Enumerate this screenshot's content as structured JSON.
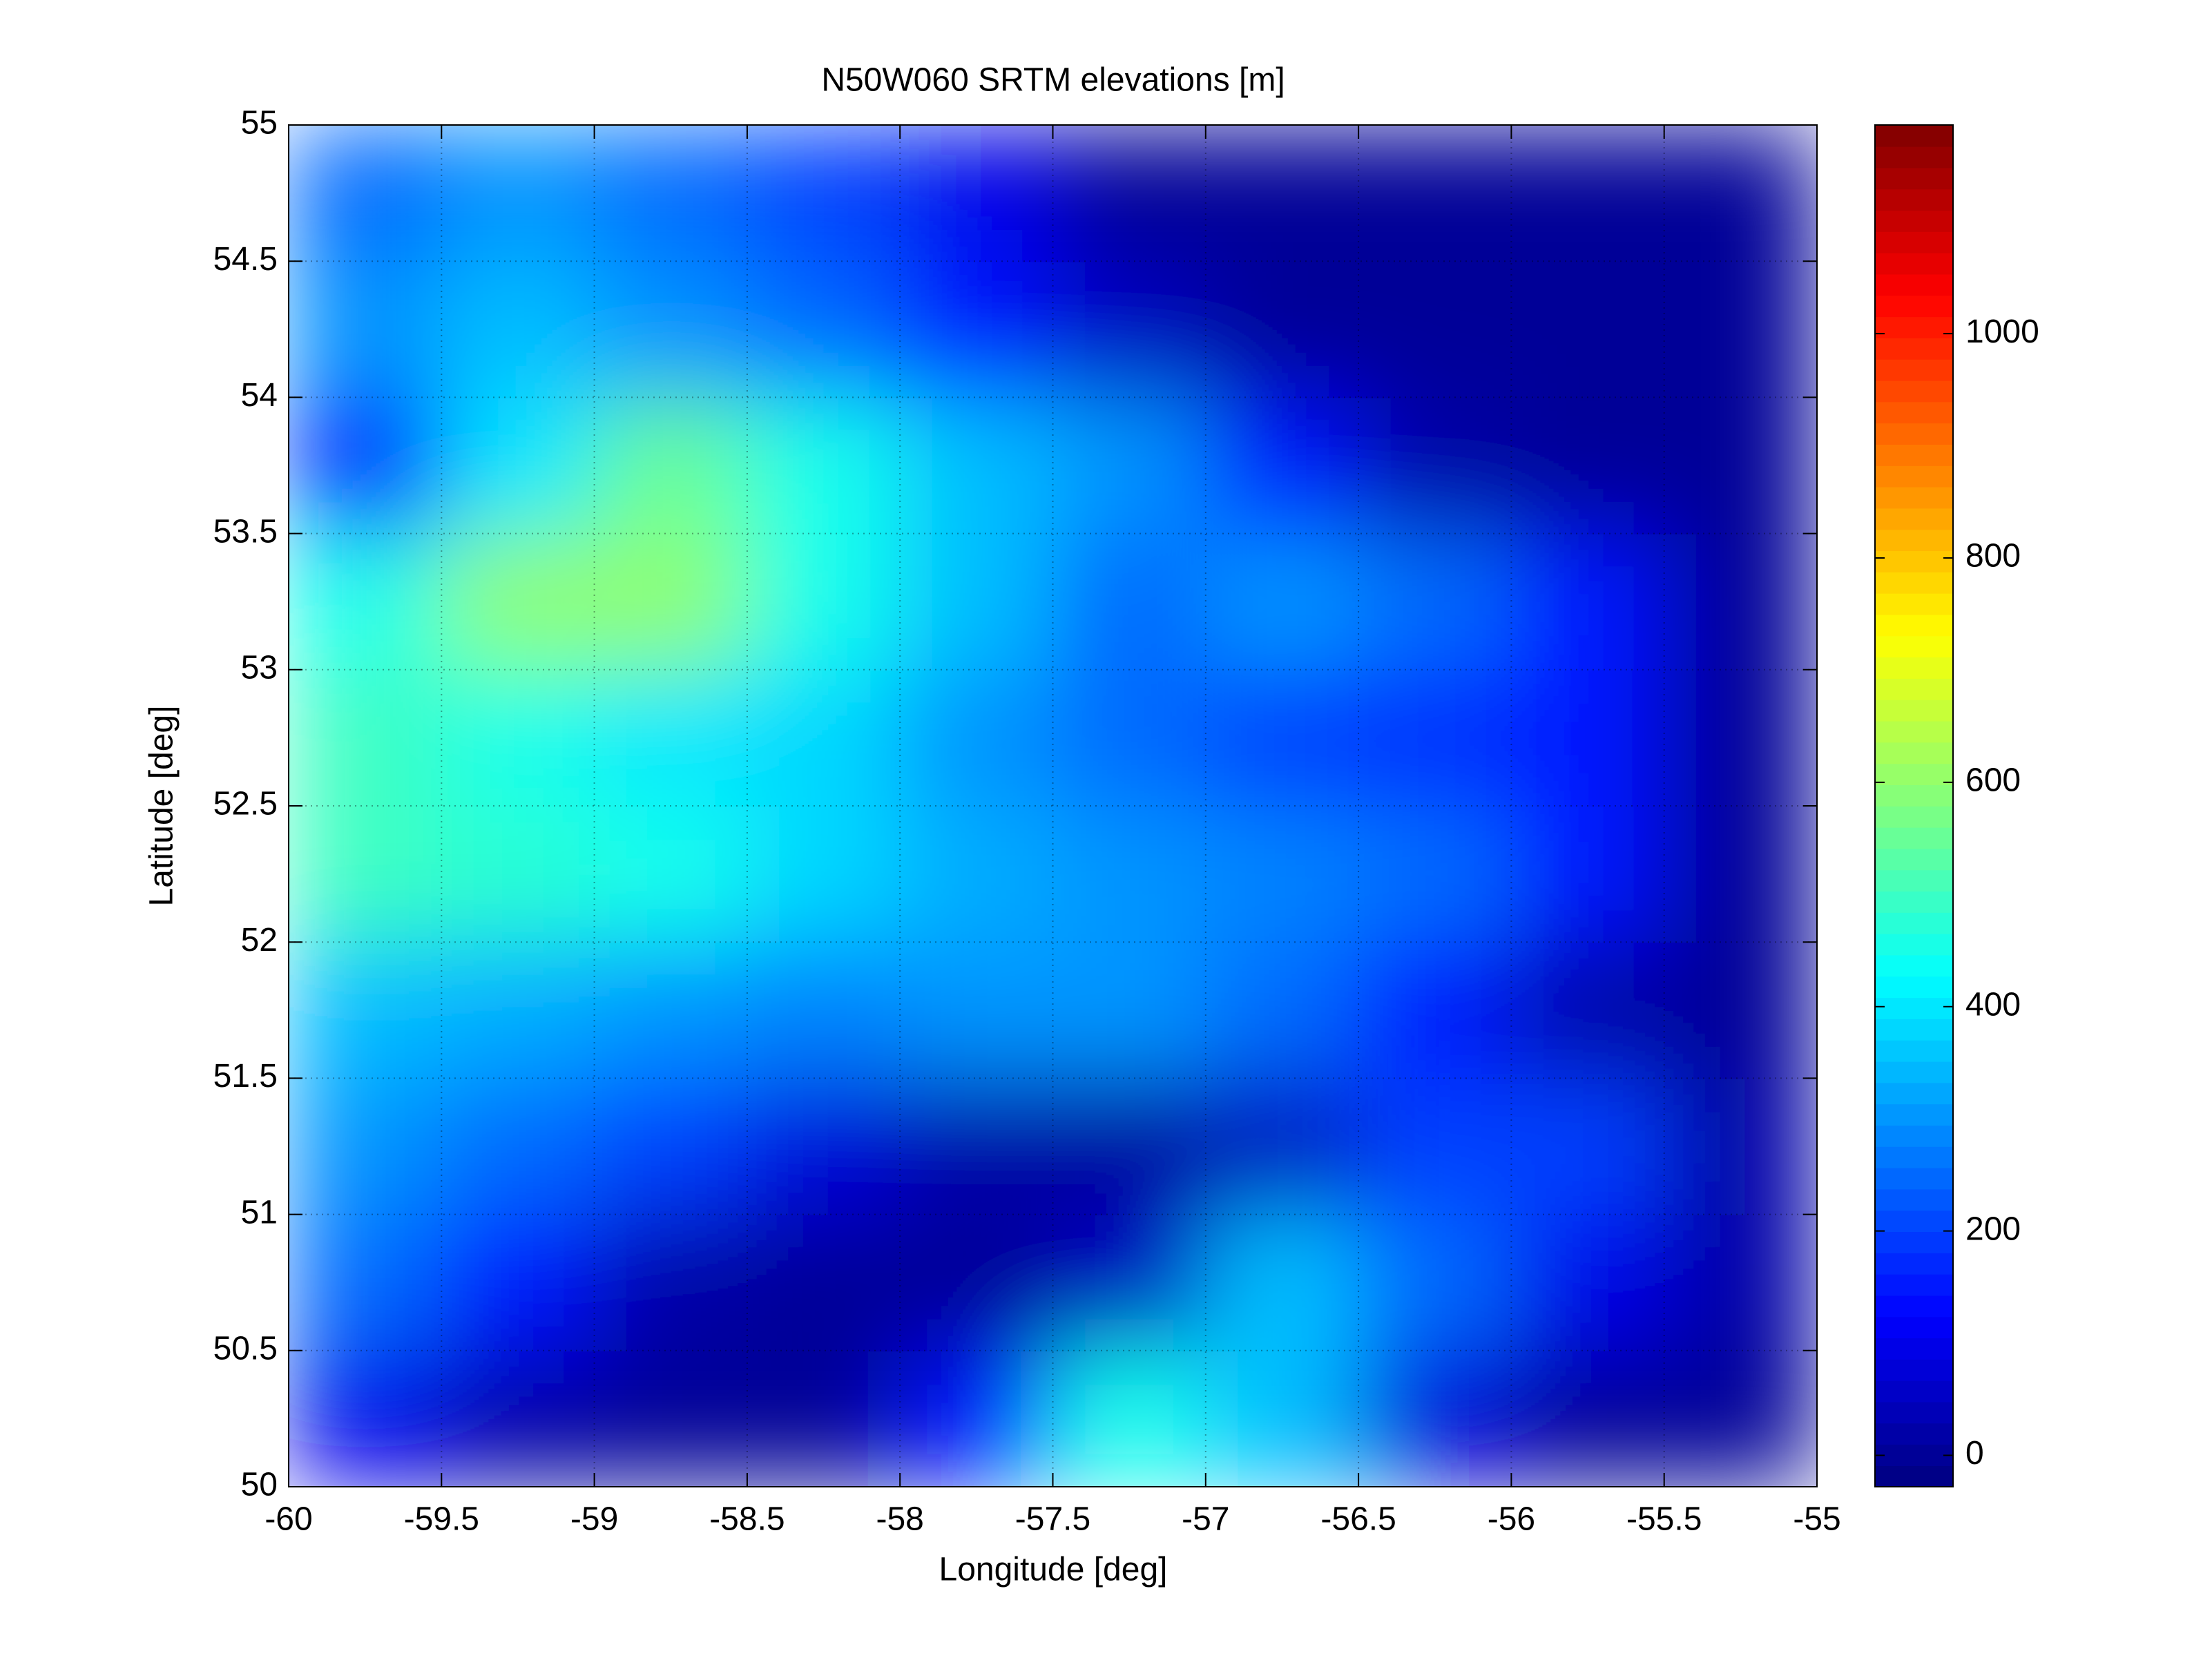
{
  "chart_data": {
    "type": "heatmap",
    "title": "N50W060 SRTM elevations [m]",
    "xlabel": "Longitude [deg]",
    "ylabel": "Latitude [deg]",
    "xbins": [
      -60,
      -59.5,
      -59,
      -58.5,
      -58,
      -57.5,
      -57,
      -56.5,
      -56,
      -55.5,
      -55
    ],
    "ybins": [
      50,
      50.5,
      51,
      51.5,
      52,
      52.5,
      53,
      53.5,
      54,
      54.5,
      55
    ],
    "values": [
      [
        100,
        20,
        0,
        0,
        150,
        450,
        350,
        80,
        0,
        0
      ],
      [
        250,
        150,
        20,
        0,
        0,
        50,
        350,
        250,
        100,
        20
      ],
      [
        300,
        250,
        200,
        80,
        20,
        10,
        50,
        200,
        200,
        20
      ],
      [
        350,
        330,
        300,
        280,
        300,
        300,
        250,
        150,
        20,
        0
      ],
      [
        500,
        480,
        450,
        380,
        330,
        300,
        280,
        250,
        150,
        0
      ],
      [
        500,
        450,
        400,
        380,
        300,
        250,
        200,
        180,
        150,
        0
      ],
      [
        450,
        600,
        600,
        450,
        350,
        250,
        300,
        250,
        150,
        0
      ],
      [
        150,
        400,
        550,
        450,
        350,
        300,
        150,
        20,
        0,
        0
      ],
      [
        300,
        350,
        300,
        250,
        150,
        50,
        0,
        0,
        0,
        0
      ],
      [
        250,
        300,
        250,
        200,
        100,
        0,
        0,
        0,
        0,
        0
      ]
    ],
    "xlim": [
      -60,
      -55
    ],
    "ylim": [
      50,
      55
    ],
    "xticks": [
      -60,
      -59.5,
      -59,
      -58.5,
      -58,
      -57.5,
      -57,
      -56.5,
      -56,
      -55.5,
      -55
    ],
    "yticks": [
      50,
      50.5,
      51,
      51.5,
      52,
      52.5,
      53,
      53.5,
      54,
      54.5,
      55
    ],
    "colormap": "jet",
    "clim": [
      -28,
      1186
    ],
    "colorbar_ticks": [
      0,
      200,
      400,
      600,
      800,
      1000
    ],
    "grid": true
  }
}
